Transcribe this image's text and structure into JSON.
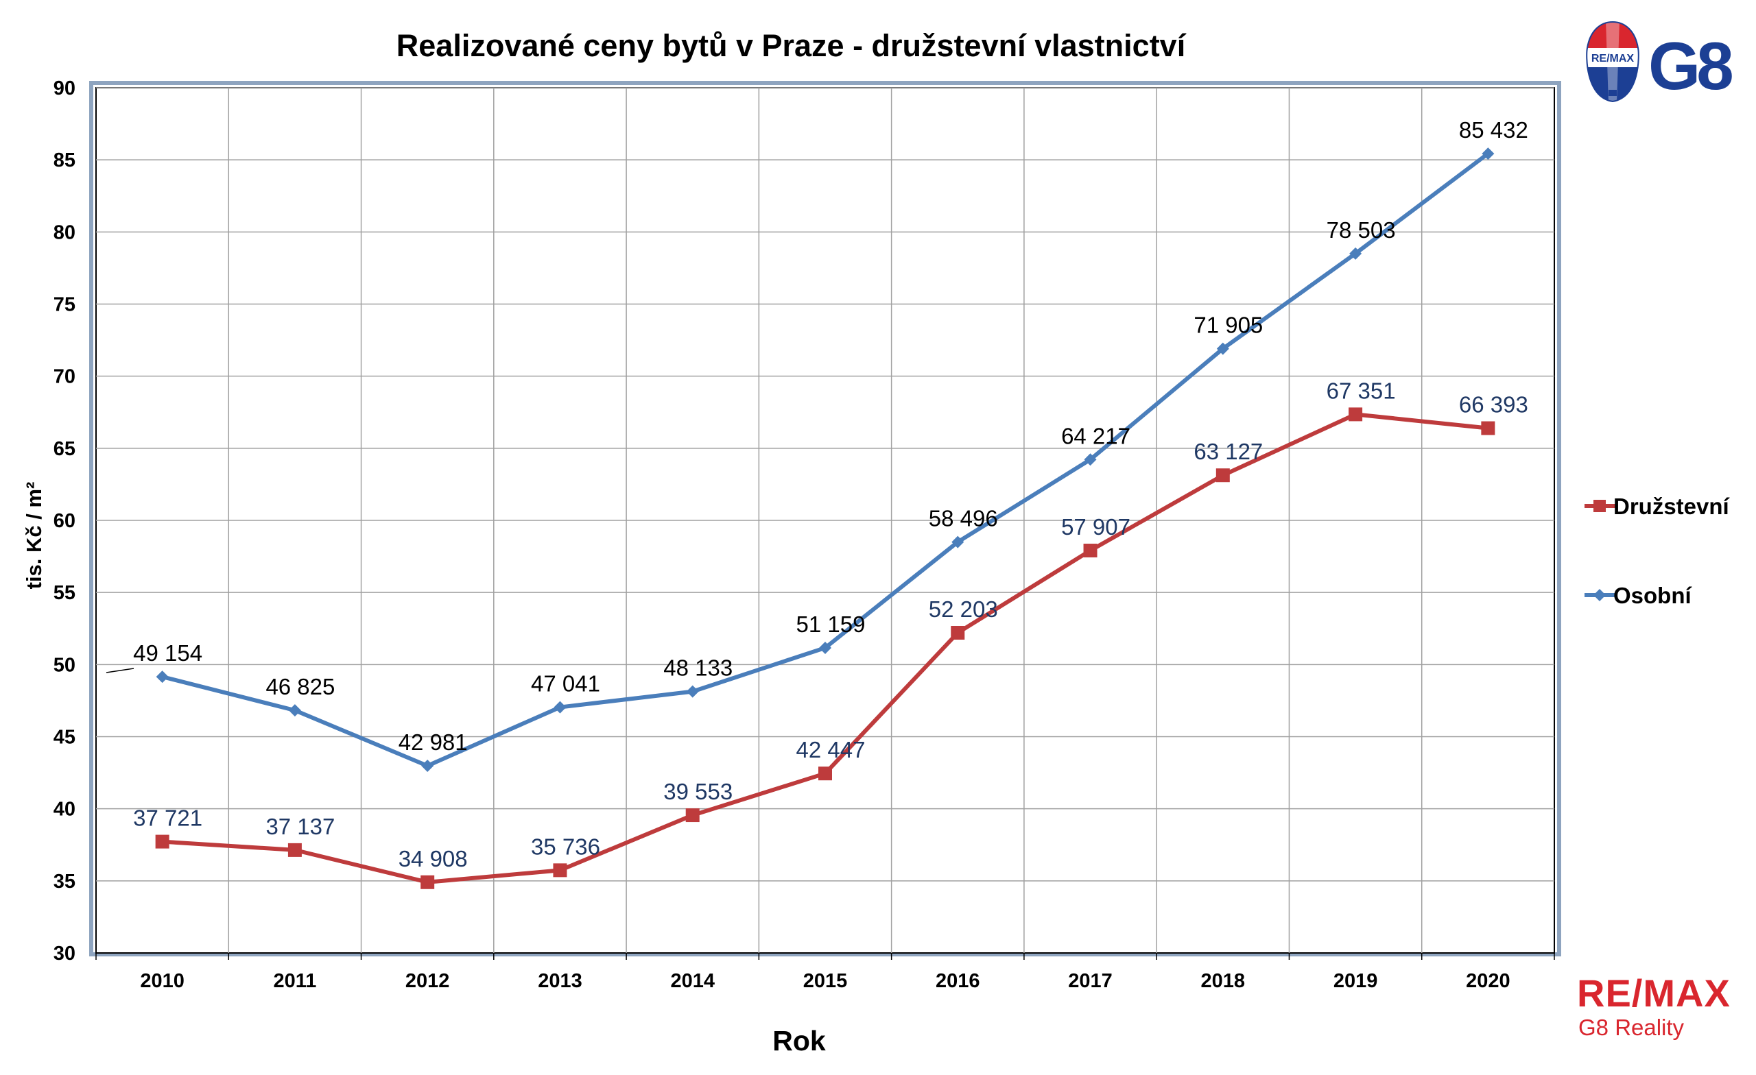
{
  "chart_data": {
    "type": "line",
    "title": "Realizované ceny bytů v Praze - družstevní vlastnictví",
    "xlabel": "Rok",
    "ylabel": "tis. Kč / m²",
    "ylim": [
      30,
      90
    ],
    "y_ticks": [
      30,
      35,
      40,
      45,
      50,
      55,
      60,
      65,
      70,
      75,
      80,
      85,
      90
    ],
    "categories": [
      "2010",
      "2011",
      "2012",
      "2013",
      "2014",
      "2015",
      "2016",
      "2017",
      "2018",
      "2019",
      "2020"
    ],
    "grid": true,
    "legend_position": "right",
    "series": [
      {
        "name": "Družstevní",
        "color": "#be3b3c",
        "label_color": "#1f3864",
        "marker": "square",
        "values": [
          37.721,
          37.137,
          34.908,
          35.736,
          39.553,
          42.447,
          52.203,
          57.907,
          63.127,
          67.351,
          66.393
        ],
        "labels": [
          "37 721",
          "37 137",
          "34 908",
          "35 736",
          "39 553",
          "42 447",
          "52 203",
          "57 907",
          "63 127",
          "67 351",
          "66 393"
        ]
      },
      {
        "name": "Osobní",
        "color": "#4a7ebb",
        "label_color": "#000000",
        "marker": "diamond",
        "values": [
          49.154,
          46.825,
          42.981,
          47.041,
          48.133,
          51.159,
          58.496,
          64.217,
          71.905,
          78.503,
          85.432
        ],
        "labels": [
          "49 154",
          "46 825",
          "42 981",
          "47 041",
          "48 133",
          "51 159",
          "58 496",
          "64 217",
          "71 905",
          "78 503",
          "85 432"
        ]
      }
    ]
  },
  "branding": {
    "balloon_text": "RE/MAX",
    "top_logo_text": "G8",
    "bottom_logo_text": "RE/MAX",
    "bottom_logo_subtext": "G8 Reality",
    "red": "#d9262e",
    "blue": "#1c3f94"
  }
}
